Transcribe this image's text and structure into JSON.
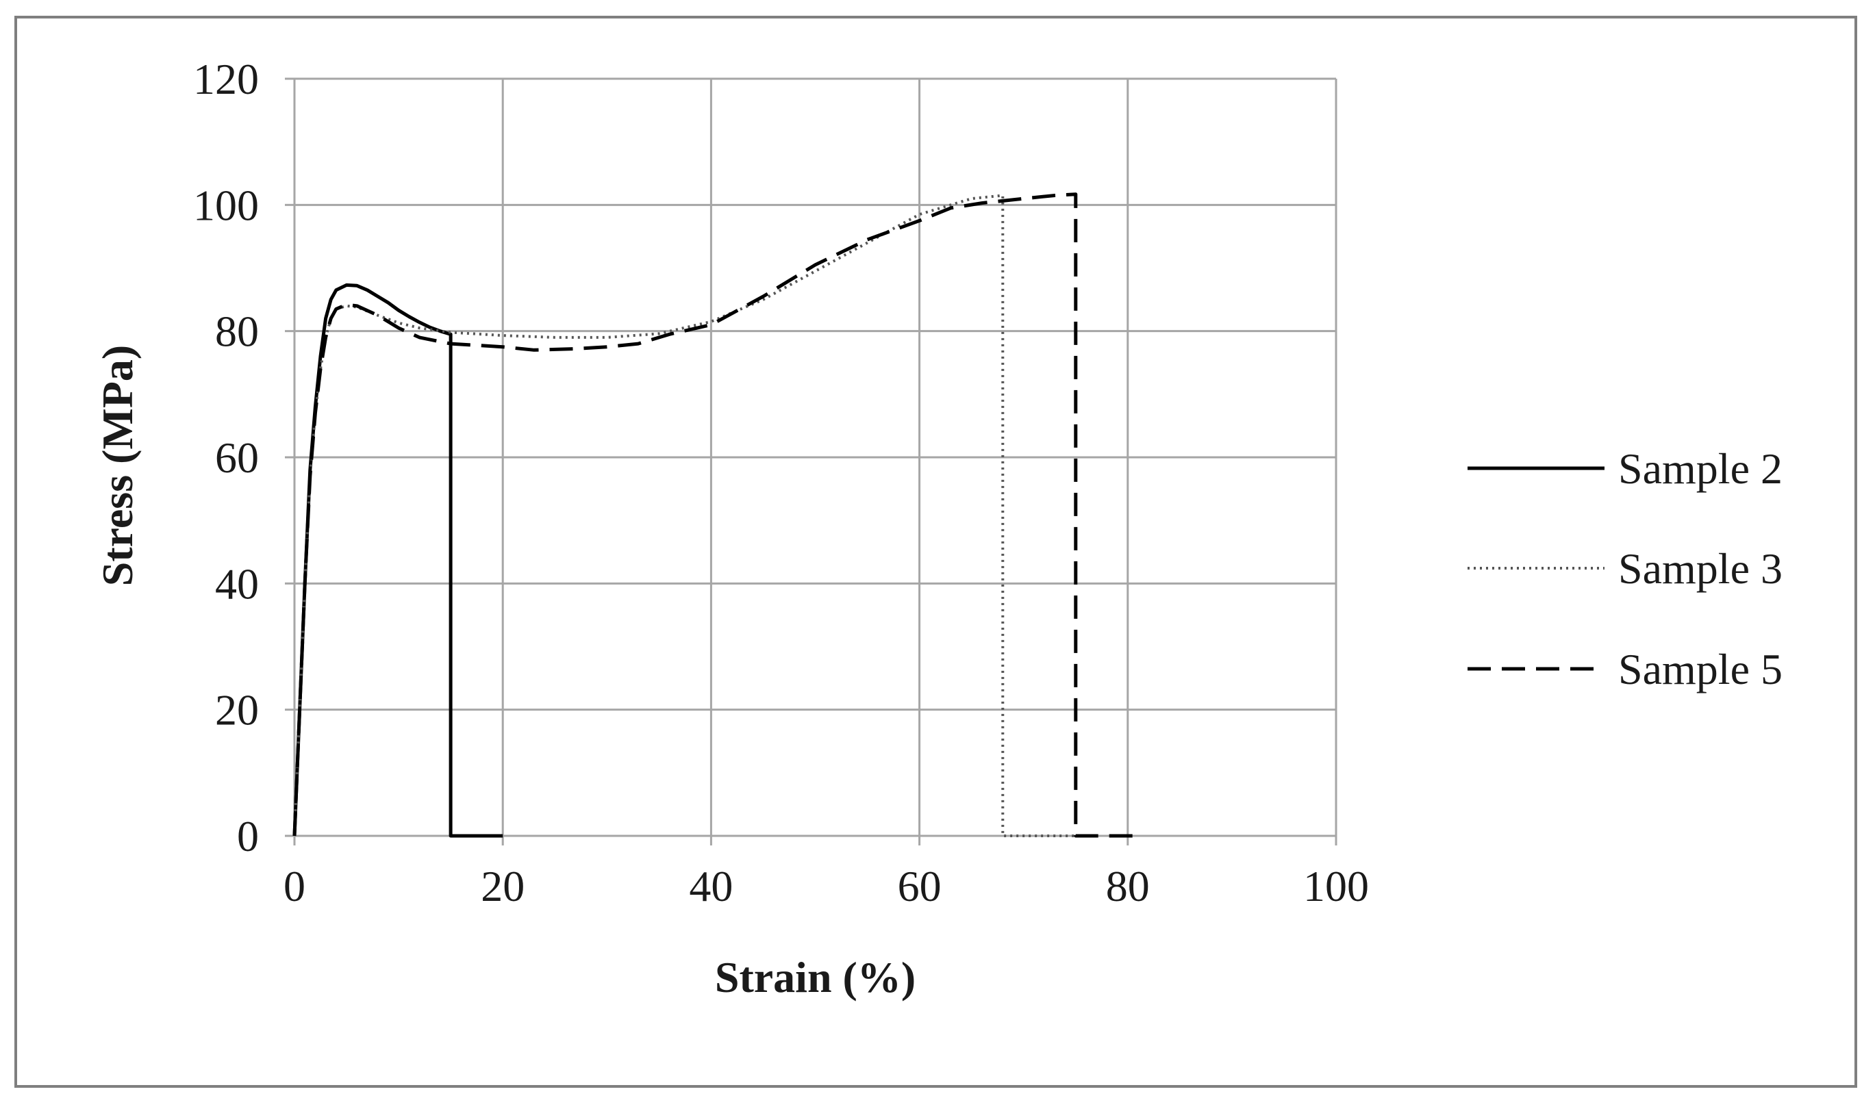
{
  "chart_data": {
    "type": "line",
    "title": "",
    "xlabel": "Strain (%)",
    "ylabel": "Stress (MPa)",
    "xlim": [
      0,
      100
    ],
    "ylim": [
      0,
      120
    ],
    "xticks": [
      "0",
      "20",
      "40",
      "60",
      "80",
      "100"
    ],
    "yticks": [
      "0",
      "20",
      "40",
      "60",
      "80",
      "100",
      "120"
    ],
    "grid": true,
    "legend_position": "right",
    "series": [
      {
        "name": "Sample 2",
        "style": "solid",
        "color": "#000000",
        "points": [
          [
            0,
            0
          ],
          [
            0.5,
            20
          ],
          [
            1,
            40
          ],
          [
            1.5,
            58
          ],
          [
            2,
            68
          ],
          [
            2.5,
            76
          ],
          [
            3,
            82
          ],
          [
            3.5,
            85
          ],
          [
            4,
            86.5
          ],
          [
            5,
            87.3
          ],
          [
            6,
            87.2
          ],
          [
            7,
            86.5
          ],
          [
            8,
            85.5
          ],
          [
            9,
            84.5
          ],
          [
            10,
            83.3
          ],
          [
            11,
            82.3
          ],
          [
            12,
            81.4
          ],
          [
            13,
            80.6
          ],
          [
            14,
            80
          ],
          [
            15,
            79.5
          ],
          [
            15,
            0
          ],
          [
            20,
            0
          ]
        ]
      },
      {
        "name": "Sample 3",
        "style": "dotted",
        "color": "#555555",
        "points": [
          [
            0,
            0
          ],
          [
            0.5,
            20
          ],
          [
            1,
            40
          ],
          [
            1.5,
            57
          ],
          [
            2,
            67
          ],
          [
            2.5,
            74
          ],
          [
            3,
            79
          ],
          [
            3.5,
            82
          ],
          [
            4,
            83.5
          ],
          [
            5,
            84
          ],
          [
            6,
            83.8
          ],
          [
            8,
            82.5
          ],
          [
            10,
            81.3
          ],
          [
            12,
            80.5
          ],
          [
            15,
            79.8
          ],
          [
            20,
            79.3
          ],
          [
            25,
            79
          ],
          [
            30,
            79
          ],
          [
            35,
            79.6
          ],
          [
            40,
            81.5
          ],
          [
            45,
            85
          ],
          [
            50,
            89.5
          ],
          [
            55,
            94
          ],
          [
            60,
            98.5
          ],
          [
            65,
            101
          ],
          [
            68,
            101.5
          ],
          [
            68,
            0
          ],
          [
            75,
            0
          ]
        ]
      },
      {
        "name": "Sample 5",
        "style": "dashed",
        "color": "#000000",
        "points": [
          [
            0,
            0
          ],
          [
            0.5,
            20
          ],
          [
            1,
            40
          ],
          [
            1.5,
            57
          ],
          [
            2,
            67
          ],
          [
            2.5,
            74
          ],
          [
            3,
            79
          ],
          [
            3.5,
            82
          ],
          [
            4,
            83.5
          ],
          [
            5,
            84.2
          ],
          [
            6,
            84
          ],
          [
            8,
            82.5
          ],
          [
            10,
            80.5
          ],
          [
            12,
            79
          ],
          [
            15,
            78
          ],
          [
            20,
            77.5
          ],
          [
            23,
            77
          ],
          [
            27,
            77.2
          ],
          [
            30,
            77.5
          ],
          [
            33,
            78
          ],
          [
            36,
            79.5
          ],
          [
            40,
            81
          ],
          [
            45,
            85.5
          ],
          [
            50,
            90.5
          ],
          [
            55,
            94.5
          ],
          [
            60,
            97.5
          ],
          [
            63,
            99.5
          ],
          [
            66,
            100.3
          ],
          [
            70,
            101
          ],
          [
            73,
            101.5
          ],
          [
            75,
            101.7
          ],
          [
            75,
            0
          ],
          [
            81,
            0
          ]
        ]
      }
    ]
  }
}
